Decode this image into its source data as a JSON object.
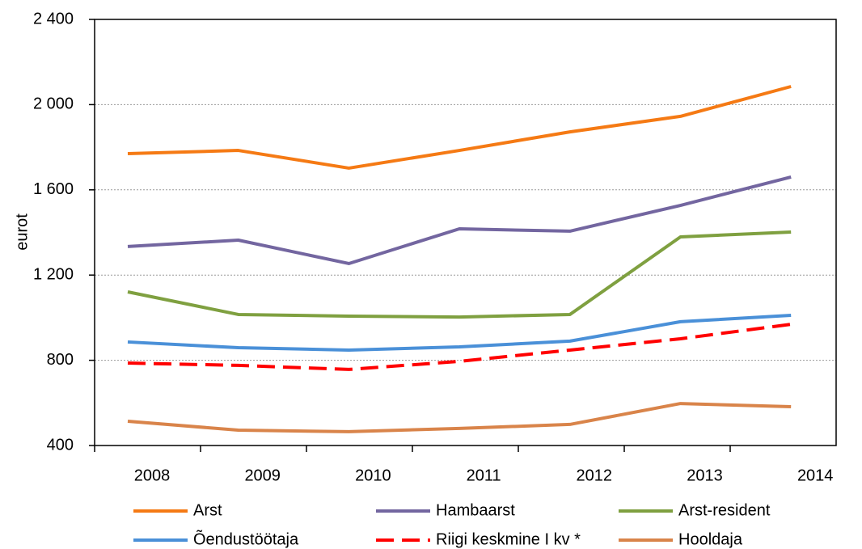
{
  "chart_data": {
    "type": "line",
    "y_label": "eurot",
    "categories": [
      "2008",
      "2009",
      "2010",
      "2011",
      "2012",
      "2013",
      "2014"
    ],
    "series": [
      {
        "name": "Arst",
        "color": "#f57a14",
        "style": "solid",
        "values": [
          1770,
          1785,
          1702,
          1785,
          1872,
          1945,
          2085
        ]
      },
      {
        "name": "Hambaarst",
        "color": "#7366a0",
        "style": "solid",
        "values": [
          1334,
          1364,
          1254,
          1417,
          1406,
          1527,
          1660
        ]
      },
      {
        "name": "Arst-resident",
        "color": "#7fa040",
        "style": "solid",
        "values": [
          1121,
          1015,
          1007,
          1003,
          1015,
          1379,
          1402
        ]
      },
      {
        "name": "Õendustöötaja",
        "color": "#4a90d8",
        "style": "solid",
        "values": [
          886,
          859,
          848,
          863,
          890,
          981,
          1011
        ]
      },
      {
        "name": "Riigi keskmine I kv *",
        "color": "#ff0000",
        "style": "dashed",
        "values": [
          787,
          776,
          757,
          795,
          848,
          901,
          969
        ]
      },
      {
        "name": "Hooldaja",
        "color": "#d9844a",
        "style": "solid",
        "values": [
          514,
          472,
          465,
          480,
          499,
          597,
          582
        ]
      }
    ],
    "ylim": [
      400,
      2400
    ],
    "yticks": [
      400,
      800,
      {
        "value": 1200,
        "label": "1 200"
      },
      {
        "value": 1600,
        "label": "1 600"
      },
      {
        "value": 2000,
        "label": "2 000"
      },
      {
        "value": 2400,
        "label": "2 400"
      }
    ],
    "grid": true,
    "legend": "bottom"
  }
}
